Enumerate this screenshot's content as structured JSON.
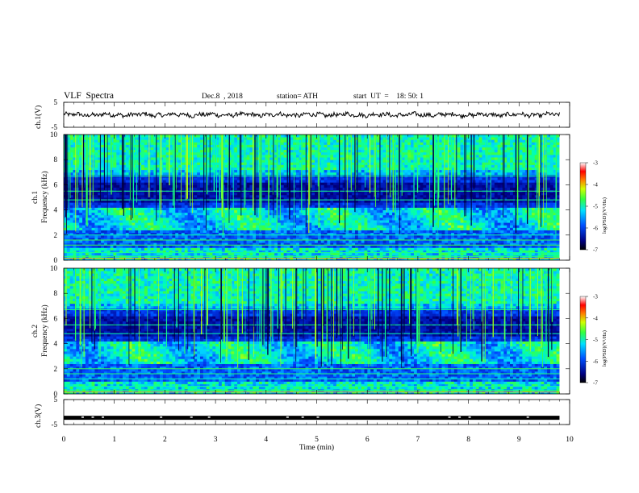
{
  "header": {
    "title": "VLF  Spectra",
    "date": "Dec.8  , 2018",
    "station": "station= ATH",
    "start_ut": "start  UT  =    18: 50: 1"
  },
  "chart_data": [
    {
      "type": "line",
      "panel": "ch1-voltage",
      "ylabel": "ch.1(V)",
      "yticks": [
        "5",
        "-5"
      ],
      "ylim": [
        -5,
        5
      ],
      "series": [
        {
          "x_range_min": [
            0,
            9.8
          ],
          "approx_level_V": 0,
          "values_V_sampled": [
            0.1,
            0.3,
            -0.2,
            0.4,
            0.0,
            -0.5,
            0.2,
            -0.1,
            0.3,
            -0.3,
            0.1,
            0.0
          ]
        }
      ]
    },
    {
      "type": "heatmap",
      "panel": "ch1-spectrogram",
      "ylabel": "ch.1\nFrequency  (kHz)",
      "yticks": [
        "0",
        "2",
        "4",
        "6",
        "8",
        "10"
      ],
      "ylim": [
        0,
        10
      ],
      "colorbar": {
        "label": "log(PSD)(V²/Hz)",
        "ticks": [
          "-3",
          "-4",
          "-5",
          "-6",
          "-7"
        ],
        "range": [
          -7,
          -3
        ]
      },
      "features": {
        "hiss_band_kHz": [
          2.5,
          4.2
        ],
        "background_dark_band_kHz": [
          4.5,
          6.2
        ],
        "sferic_lines": "vertical broadband impulses"
      }
    },
    {
      "type": "heatmap",
      "panel": "ch2-spectrogram",
      "ylabel": "ch.2\nFrequency  (kHz)",
      "yticks": [
        "0",
        "2",
        "4",
        "6",
        "8",
        "10"
      ],
      "ylim": [
        0,
        10
      ],
      "colorbar": {
        "label": "log(PSD)(V²/Hz)",
        "ticks": [
          "-3",
          "-4",
          "-5",
          "-6",
          "-7"
        ],
        "range": [
          -7,
          -3
        ]
      },
      "features": {
        "hiss_band_kHz": [
          2.5,
          4.2
        ],
        "background_dark_band_kHz": [
          4.5,
          6.2
        ],
        "sferic_lines": "vertical broadband impulses"
      }
    },
    {
      "type": "line",
      "panel": "ch3-voltage",
      "ylabel": "ch.3(V)",
      "yticks": [
        "5",
        "-5"
      ],
      "ylim": [
        -5,
        5
      ],
      "series": [
        {
          "x_range_min": [
            0,
            9.8
          ],
          "approx_level_V": -2.3
        }
      ]
    }
  ],
  "xaxis": {
    "label": "Time  (min)",
    "ticks": [
      "0",
      "1",
      "2",
      "3",
      "4",
      "5",
      "6",
      "7",
      "8",
      "9",
      "10"
    ],
    "xlim": [
      0,
      10
    ]
  },
  "colors": {
    "colormap": [
      "#000055",
      "#0000ff",
      "#00b0ff",
      "#00ffc0",
      "#40ff40",
      "#ffff00",
      "#ff8000",
      "#ff0000",
      "#ffffff"
    ]
  }
}
